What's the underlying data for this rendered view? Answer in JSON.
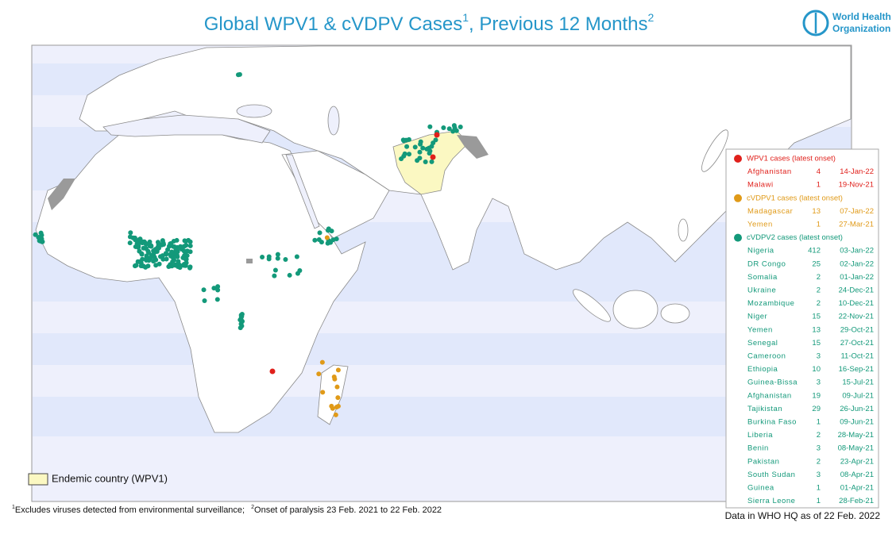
{
  "header": {
    "title": {
      "text": "Global WPV1 & cVDPV Cases",
      "sup1": "1",
      "text2": ", Previous 12 Months",
      "sup2": "2"
    },
    "logo": {
      "line1": "World Health",
      "line2": "Organization"
    }
  },
  "map_legend": {
    "endemic": "Endemic country (WPV1)"
  },
  "case_table": {
    "sections": [
      {
        "header": "WPV1 cases (latest onset)",
        "rows": [
          [
            "Afghanistan",
            4,
            "14-Jan-22"
          ],
          [
            "Malawi",
            1,
            "19-Nov-21"
          ]
        ]
      },
      {
        "header": "cVDPV1 cases (latest onset)",
        "rows": [
          [
            "Madagascar",
            13,
            "07-Jan-22"
          ],
          [
            "Yemen",
            1,
            "27-Mar-21"
          ]
        ]
      },
      {
        "header": "cVDPV2 cases (latest onset)",
        "rows": [
          [
            "Nigeria",
            412,
            "03-Jan-22"
          ],
          [
            "DR Congo",
            25,
            "02-Jan-22"
          ],
          [
            "Somalia",
            2,
            "01-Jan-22"
          ],
          [
            "Ukraine",
            2,
            "24-Dec-21"
          ],
          [
            "Mozambique",
            2,
            "10-Dec-21"
          ],
          [
            "Niger",
            15,
            "22-Nov-21"
          ],
          [
            "Yemen",
            13,
            "29-Oct-21"
          ],
          [
            "Senegal",
            15,
            "27-Oct-21"
          ],
          [
            "Cameroon",
            3,
            "11-Oct-21"
          ],
          [
            "Ethiopia",
            10,
            "16-Sep-21"
          ],
          [
            "Guinea-Bissa",
            3,
            "15-Jul-21"
          ],
          [
            "Afghanistan",
            19,
            "09-Jul-21"
          ],
          [
            "Tajikistan",
            29,
            "26-Jun-21"
          ],
          [
            "Burkina Faso",
            1,
            "09-Jun-21"
          ],
          [
            "Liberia",
            2,
            "28-May-21"
          ],
          [
            "Benin",
            3,
            "08-May-21"
          ],
          [
            "Pakistan",
            2,
            "23-Apr-21"
          ],
          [
            "South Sudan",
            3,
            "08-Apr-21"
          ],
          [
            "Guinea",
            1,
            "01-Apr-21"
          ],
          [
            "Sierra Leone",
            1,
            "28-Feb-21"
          ]
        ]
      }
    ]
  },
  "footnotes": {
    "note1_marker": "1",
    "note1": "Excludes viruses detected from environmental surveillance;",
    "note2_marker": "2",
    "note2": "Onset of paralysis 23 Feb. 2021 to 22 Feb. 2022"
  },
  "data_note": "Data in WHO HQ as of 22 Feb. 2022"
}
